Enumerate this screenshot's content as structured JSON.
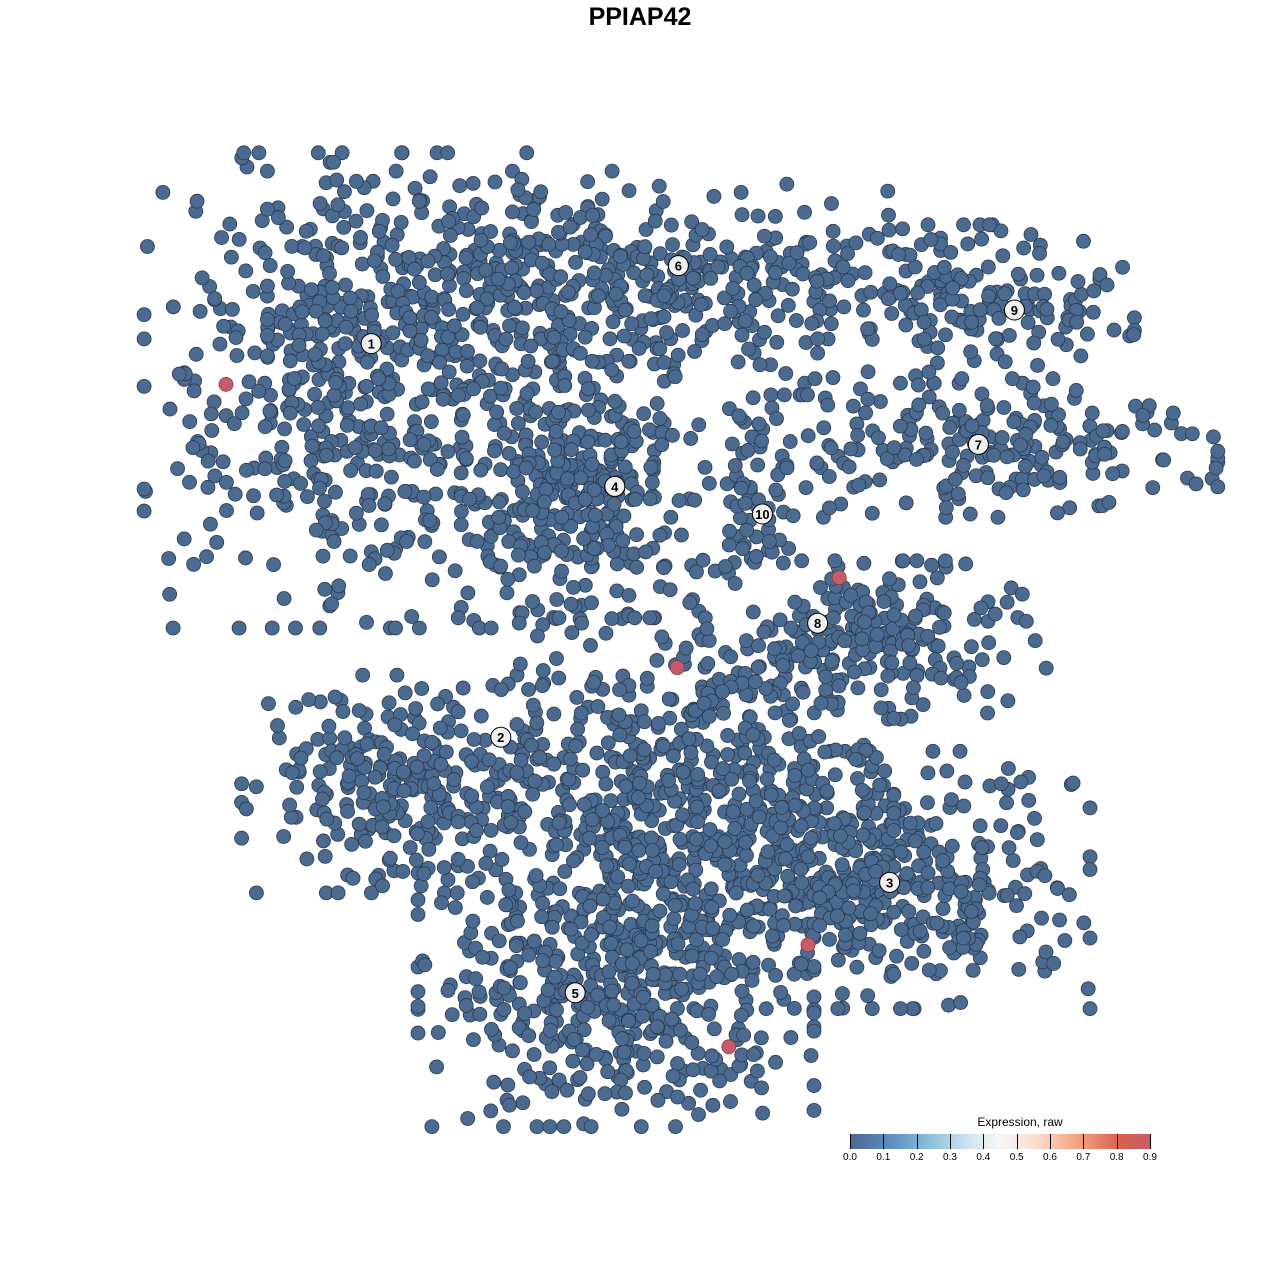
{
  "chart_data": {
    "type": "scatter",
    "title": "PPIAP42",
    "xlabel": "",
    "ylabel": "",
    "grid": false,
    "xlim": [
      -53,
      53
    ],
    "ylim": [
      -53,
      53
    ],
    "base_color": "#4b6a8f",
    "clusters": [
      {
        "label": "1",
        "label_pos": [
          -22.4,
          24.7
        ],
        "center": [
          -24,
          20.8
        ],
        "spread": [
          10.5,
          12
        ],
        "n": 520
      },
      {
        "label": "6",
        "label_pos": [
          3.2,
          31.2
        ],
        "center": [
          -3,
          30
        ],
        "spread": [
          17,
          5.5
        ],
        "n": 520
      },
      {
        "label": "4",
        "label_pos": [
          -2.1,
          12.8
        ],
        "center": [
          -5,
          12.5
        ],
        "spread": [
          6,
          6.5
        ],
        "n": 330
      },
      {
        "label": "9",
        "label_pos": [
          31.2,
          27.5
        ],
        "center": [
          28,
          28
        ],
        "spread": [
          8,
          4
        ],
        "n": 150
      },
      {
        "label": "7",
        "label_pos": [
          28.2,
          16.3
        ],
        "center": [
          30,
          16
        ],
        "spread": [
          11,
          3.5
        ],
        "n": 200
      },
      {
        "label": "10",
        "label_pos": [
          10.2,
          10.5
        ],
        "center": [
          10,
          13
        ],
        "spread": [
          3.5,
          4.5
        ],
        "n": 80
      },
      {
        "label": "8",
        "label_pos": [
          14.8,
          1.4
        ],
        "center": [
          19,
          0
        ],
        "spread": [
          9,
          4
        ],
        "n": 220
      },
      {
        "label": "2",
        "label_pos": [
          -11.6,
          -8.1
        ],
        "center": [
          -20,
          -12
        ],
        "spread": [
          8,
          5.5
        ],
        "n": 260
      },
      {
        "label": "3",
        "label_pos": [
          20.8,
          -20.2
        ],
        "center": [
          21,
          -20
        ],
        "spread": [
          10,
          6.5
        ],
        "n": 380
      },
      {
        "label": "5",
        "label_pos": [
          -5.4,
          -29.4
        ],
        "center": [
          -2,
          -29
        ],
        "spread": [
          10,
          7
        ],
        "n": 480
      },
      {
        "label": "",
        "label_pos": null,
        "center": [
          3,
          -13
        ],
        "spread": [
          11,
          9
        ],
        "n": 620
      }
    ],
    "highlighted_points": [
      {
        "x": -34.5,
        "y": 21.3,
        "value": 0.9
      },
      {
        "x": 16.6,
        "y": 5.2,
        "value": 0.9
      },
      {
        "x": 3.1,
        "y": -2.3,
        "value": 0.9
      },
      {
        "x": 14,
        "y": -25.4,
        "value": 0.9
      },
      {
        "x": 7.4,
        "y": -33.9,
        "value": 0.9
      }
    ],
    "legend": {
      "title": "Expression, raw",
      "position": "bottom-right",
      "ticks": [
        "0.0",
        "0.1",
        "0.2",
        "0.3",
        "0.4",
        "0.5",
        "0.6",
        "0.7",
        "0.8",
        "0.9"
      ],
      "min": 0,
      "max": 0.9,
      "colors": [
        "#4a6890",
        "#f7f7f7",
        "#c65b6a"
      ]
    }
  }
}
